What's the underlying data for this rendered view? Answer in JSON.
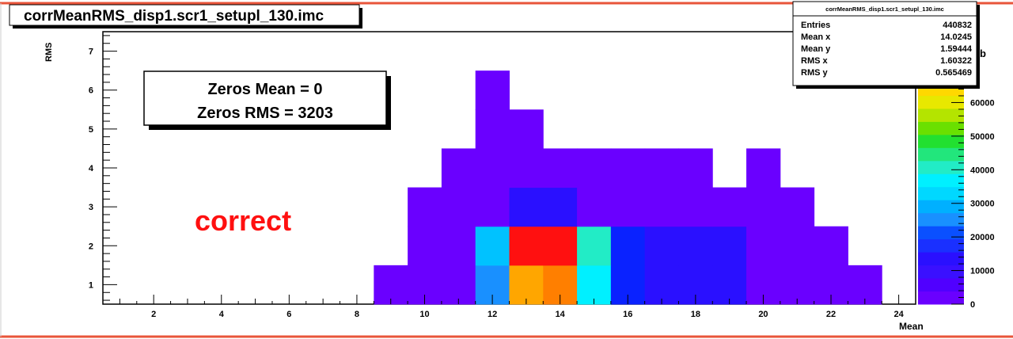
{
  "window": {
    "title": "corrMeanRMS_disp1.scr1_setupl_130.imc"
  },
  "annotation": {
    "line1": "Zeros Mean = 0",
    "line2": "Zeros RMS = 3203",
    "verdict": "correct"
  },
  "stats": {
    "title": "corrMeanRMS_disp1.scr1_setupl_130.imc",
    "rows": [
      {
        "label": "Entries",
        "value": "440832"
      },
      {
        "label": "Mean x",
        "value": "14.0245"
      },
      {
        "label": "Mean y",
        "value": "1.59444"
      },
      {
        "label": "RMS x",
        "value": "1.60322"
      },
      {
        "label": "RMS y",
        "value": "0.565469"
      }
    ]
  },
  "colors": {
    "frame_red": "#e8553a",
    "violet": "#6a00ff",
    "indigo": "#2a10ff",
    "blue": "#0a22ff",
    "blue_mid": "#0f6bff",
    "azure": "#1990ff",
    "sky": "#00c2ff",
    "cyan": "#00f0ff",
    "teal": "#22ecc6",
    "orange": "#ff7f00",
    "amber": "#ffa600",
    "red": "#ff1010"
  },
  "chart_data": {
    "type": "heatmap",
    "title": "corrMeanRMS_disp1.scr1_setupl_130.imc",
    "xlabel": "Mean",
    "ylabel": "RMS",
    "xlim": [
      0.5,
      24.5
    ],
    "ylim": [
      0.5,
      7.5
    ],
    "x_ticks": [
      2,
      4,
      6,
      8,
      10,
      12,
      14,
      16,
      18,
      20,
      22,
      24
    ],
    "y_ticks": [
      1,
      2,
      3,
      4,
      5,
      6,
      7
    ],
    "colorbar_ticks": [
      0,
      10000,
      20000,
      30000,
      40000,
      50000,
      60000
    ],
    "colorbar_top_label_partial": "b",
    "cells": [
      {
        "x": 9,
        "y": 1,
        "color": "violet"
      },
      {
        "x": 10,
        "y": 1,
        "color": "violet"
      },
      {
        "x": 11,
        "y": 1,
        "color": "violet"
      },
      {
        "x": 12,
        "y": 1,
        "color": "azure"
      },
      {
        "x": 13,
        "y": 1,
        "color": "amber"
      },
      {
        "x": 14,
        "y": 1,
        "color": "orange"
      },
      {
        "x": 15,
        "y": 1,
        "color": "cyan"
      },
      {
        "x": 16,
        "y": 1,
        "color": "blue"
      },
      {
        "x": 17,
        "y": 1,
        "color": "indigo"
      },
      {
        "x": 18,
        "y": 1,
        "color": "indigo"
      },
      {
        "x": 19,
        "y": 1,
        "color": "indigo"
      },
      {
        "x": 20,
        "y": 1,
        "color": "violet"
      },
      {
        "x": 21,
        "y": 1,
        "color": "violet"
      },
      {
        "x": 22,
        "y": 1,
        "color": "violet"
      },
      {
        "x": 23,
        "y": 1,
        "color": "violet"
      },
      {
        "x": 10,
        "y": 2,
        "color": "violet"
      },
      {
        "x": 11,
        "y": 2,
        "color": "violet"
      },
      {
        "x": 12,
        "y": 2,
        "color": "sky"
      },
      {
        "x": 13,
        "y": 2,
        "color": "red"
      },
      {
        "x": 14,
        "y": 2,
        "color": "red"
      },
      {
        "x": 15,
        "y": 2,
        "color": "teal"
      },
      {
        "x": 16,
        "y": 2,
        "color": "blue"
      },
      {
        "x": 17,
        "y": 2,
        "color": "indigo"
      },
      {
        "x": 18,
        "y": 2,
        "color": "indigo"
      },
      {
        "x": 19,
        "y": 2,
        "color": "indigo"
      },
      {
        "x": 20,
        "y": 2,
        "color": "violet"
      },
      {
        "x": 21,
        "y": 2,
        "color": "violet"
      },
      {
        "x": 22,
        "y": 2,
        "color": "violet"
      },
      {
        "x": 10,
        "y": 3,
        "color": "violet"
      },
      {
        "x": 11,
        "y": 3,
        "color": "violet"
      },
      {
        "x": 12,
        "y": 3,
        "color": "violet"
      },
      {
        "x": 13,
        "y": 3,
        "color": "indigo"
      },
      {
        "x": 14,
        "y": 3,
        "color": "indigo"
      },
      {
        "x": 15,
        "y": 3,
        "color": "violet"
      },
      {
        "x": 16,
        "y": 3,
        "color": "violet"
      },
      {
        "x": 17,
        "y": 3,
        "color": "violet"
      },
      {
        "x": 18,
        "y": 3,
        "color": "violet"
      },
      {
        "x": 19,
        "y": 3,
        "color": "violet"
      },
      {
        "x": 20,
        "y": 3,
        "color": "violet"
      },
      {
        "x": 21,
        "y": 3,
        "color": "violet"
      },
      {
        "x": 11,
        "y": 4,
        "color": "violet"
      },
      {
        "x": 12,
        "y": 4,
        "color": "violet"
      },
      {
        "x": 13,
        "y": 4,
        "color": "violet"
      },
      {
        "x": 14,
        "y": 4,
        "color": "violet"
      },
      {
        "x": 15,
        "y": 4,
        "color": "violet"
      },
      {
        "x": 16,
        "y": 4,
        "color": "violet"
      },
      {
        "x": 17,
        "y": 4,
        "color": "violet"
      },
      {
        "x": 18,
        "y": 4,
        "color": "violet"
      },
      {
        "x": 20,
        "y": 4,
        "color": "violet"
      },
      {
        "x": 12,
        "y": 5,
        "color": "violet"
      },
      {
        "x": 13,
        "y": 5,
        "color": "violet"
      },
      {
        "x": 12,
        "y": 6,
        "color": "violet"
      }
    ],
    "colorbar_bands": [
      "#6a00ff",
      "#5000ff",
      "#3a10ff",
      "#2a10ff",
      "#1a30ff",
      "#0a50ff",
      "#1990ff",
      "#00b0ff",
      "#00d8ff",
      "#00f0ff",
      "#22ecc6",
      "#22e67c",
      "#22e030",
      "#6ae000",
      "#b4e400",
      "#e8e800",
      "#ffd800"
    ]
  }
}
